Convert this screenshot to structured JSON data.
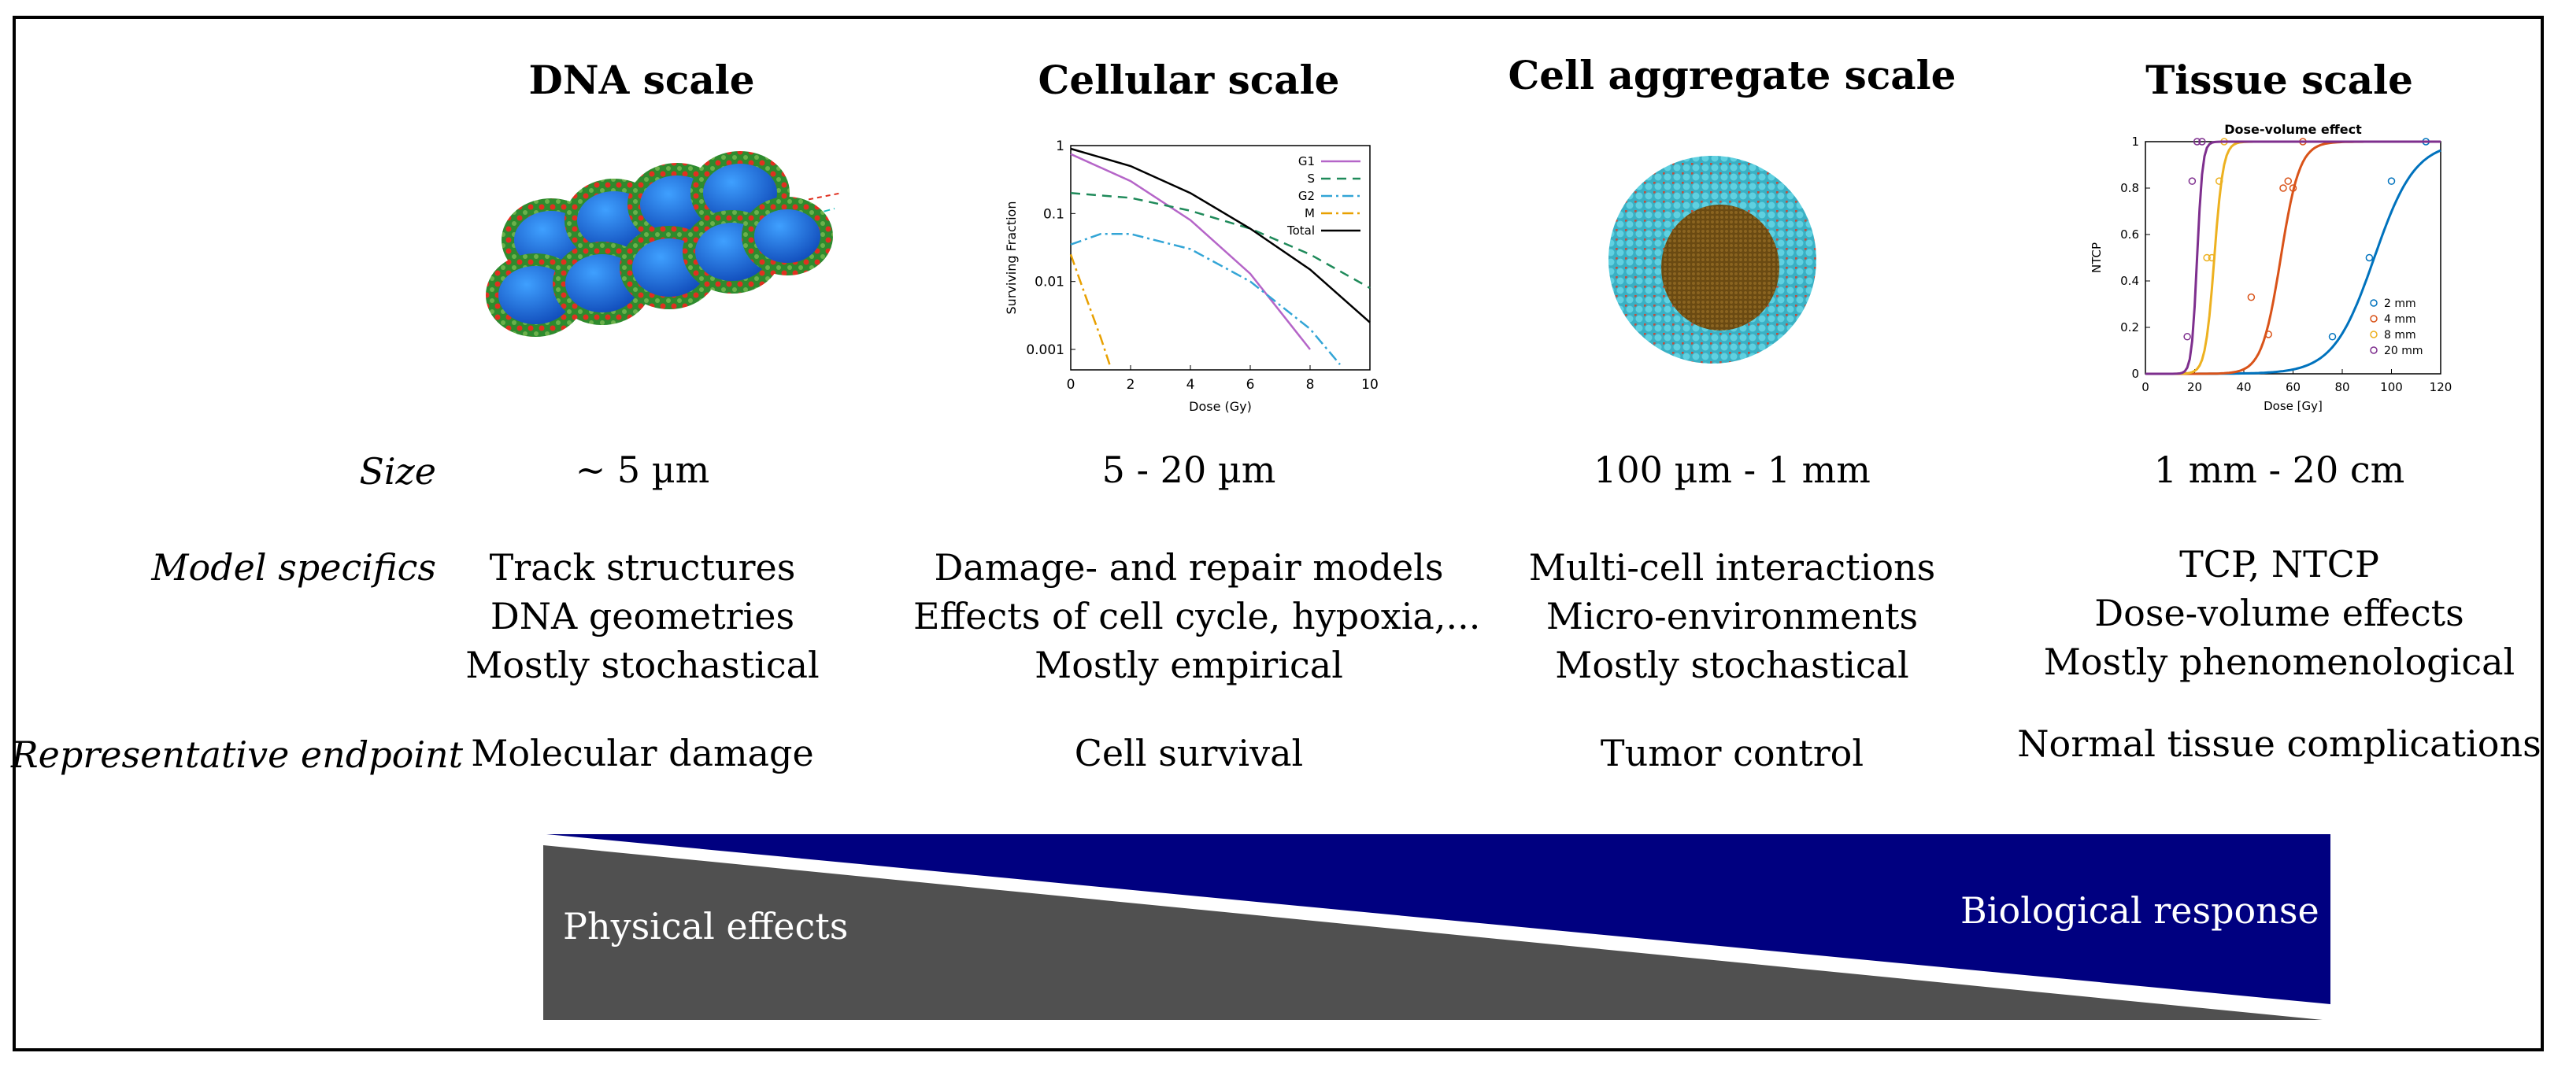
{
  "columns": [
    {
      "title": "DNA scale",
      "size": "~ 5 µm",
      "specifics": [
        "Track structures",
        "DNA geometries",
        "Mostly stochastical"
      ],
      "endpoint": "Molecular damage"
    },
    {
      "title": "Cellular scale",
      "size": "5 - 20 µm",
      "specifics": [
        "Damage- and repair models",
        "Effects of cell cycle, hypoxia,...",
        "Mostly empirical"
      ],
      "endpoint": "Cell survival"
    },
    {
      "title": "Cell aggregate scale",
      "size": "100 µm - 1 mm",
      "specifics": [
        "Multi-cell interactions",
        "Micro-environments",
        "Mostly stochastical"
      ],
      "endpoint": "Tumor control"
    },
    {
      "title": "Tissue scale",
      "size": "1 mm - 20 cm",
      "specifics": [
        "TCP, NTCP",
        "Dose-volume effects",
        "Mostly phenomenological"
      ],
      "endpoint": "Normal tissue complications"
    }
  ],
  "row_labels": {
    "size": "Size",
    "specifics": "Model specifics",
    "endpoint": "Representative endpoint"
  },
  "gradient": {
    "left_label": "Physical effects",
    "right_label": "Biological response",
    "left_color": "#505050",
    "right_color": "#000080"
  },
  "chart_data": [
    {
      "type": "line",
      "xlabel": "Dose (Gy)",
      "ylabel": "Surviving Fraction",
      "xlim": [
        0,
        10
      ],
      "ylim": [
        0.0005,
        1
      ],
      "log_y": true,
      "x_ticks": [
        "0",
        "2",
        "4",
        "6",
        "8",
        "10"
      ],
      "y_ticks": [
        "0.001",
        "0.01",
        "0.1",
        "1"
      ],
      "series": [
        {
          "name": "G1",
          "color": "#b565c8",
          "x": [
            0,
            2,
            4,
            6,
            8
          ],
          "y": [
            0.75,
            0.3,
            0.08,
            0.013,
            0.001
          ]
        },
        {
          "name": "S",
          "color": "#1f8a5a",
          "x": [
            0,
            2,
            4,
            6,
            8,
            10
          ],
          "y": [
            0.2,
            0.17,
            0.11,
            0.06,
            0.025,
            0.008
          ]
        },
        {
          "name": "G2",
          "color": "#33a5d6",
          "x": [
            0,
            1,
            2,
            4,
            6,
            8,
            9
          ],
          "y": [
            0.035,
            0.05,
            0.05,
            0.03,
            0.01,
            0.002,
            0.0006
          ]
        },
        {
          "name": "M",
          "color": "#e8a000",
          "x": [
            0,
            0.5,
            1,
            1.3
          ],
          "y": [
            0.025,
            0.006,
            0.0015,
            0.0006
          ]
        },
        {
          "name": "Total",
          "color": "#000000",
          "x": [
            0,
            2,
            4,
            6,
            8,
            10
          ],
          "y": [
            0.9,
            0.5,
            0.2,
            0.06,
            0.015,
            0.0025
          ]
        }
      ]
    },
    {
      "type": "scatter",
      "title": "Dose-volume effect",
      "xlabel": "Dose [Gy]",
      "ylabel": "NTCP",
      "xlim": [
        0,
        120
      ],
      "ylim": [
        0,
        1
      ],
      "x_ticks": [
        "0",
        "20",
        "40",
        "60",
        "80",
        "100",
        "120"
      ],
      "y_ticks": [
        "0",
        "0.2",
        "0.4",
        "0.6",
        "0.8",
        "1"
      ],
      "series": [
        {
          "name": "2 mm",
          "color": "#0072bd",
          "d50": 93,
          "slope": 0.12,
          "x": [
            76,
            91,
            100,
            114
          ],
          "y": [
            0.16,
            0.5,
            0.83,
            1.0
          ]
        },
        {
          "name": "4 mm",
          "color": "#d95319",
          "d50": 55,
          "slope": 0.26,
          "x": [
            43,
            50,
            56,
            58,
            60,
            64
          ],
          "y": [
            0.33,
            0.17,
            0.8,
            0.83,
            0.8,
            1.0
          ]
        },
        {
          "name": "8 mm",
          "color": "#edb120",
          "d50": 28,
          "slope": 0.55,
          "x": [
            25,
            27,
            30,
            32
          ],
          "y": [
            0.5,
            0.5,
            0.83,
            1.0
          ]
        },
        {
          "name": "20 mm",
          "color": "#7e2f8e",
          "d50": 21,
          "slope": 0.9,
          "x": [
            17,
            19,
            21,
            23
          ],
          "y": [
            0.16,
            0.83,
            1.0,
            1.0
          ]
        }
      ]
    }
  ]
}
